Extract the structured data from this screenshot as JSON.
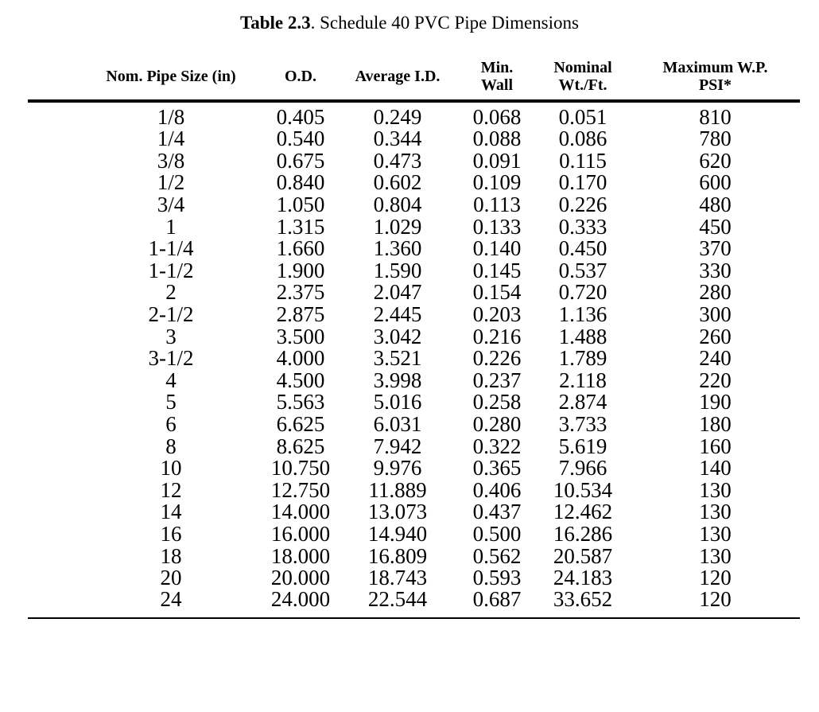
{
  "title": {
    "bold_part": "Table 2.3",
    "rest_part": ". Schedule 40 PVC Pipe Dimensions"
  },
  "table": {
    "headers": [
      {
        "line1": "Nom. Pipe Size (in)",
        "line2": ""
      },
      {
        "line1": "O.D.",
        "line2": ""
      },
      {
        "line1": "Average I.D.",
        "line2": ""
      },
      {
        "line1": "Min.",
        "line2": "Wall"
      },
      {
        "line1": "Nominal",
        "line2": "Wt./Ft."
      },
      {
        "line1": "Maximum W.P.",
        "line2": "PSI*"
      }
    ],
    "rows": [
      [
        "1/8",
        "0.405",
        "0.249",
        "0.068",
        "0.051",
        "810"
      ],
      [
        "1/4",
        "0.540",
        "0.344",
        "0.088",
        "0.086",
        "780"
      ],
      [
        "3/8",
        "0.675",
        "0.473",
        "0.091",
        "0.115",
        "620"
      ],
      [
        "1/2",
        "0.840",
        "0.602",
        "0.109",
        "0.170",
        "600"
      ],
      [
        "3/4",
        "1.050",
        "0.804",
        "0.113",
        "0.226",
        "480"
      ],
      [
        "1",
        "1.315",
        "1.029",
        "0.133",
        "0.333",
        "450"
      ],
      [
        "1-1/4",
        "1.660",
        "1.360",
        "0.140",
        "0.450",
        "370"
      ],
      [
        "1-1/2",
        "1.900",
        "1.590",
        "0.145",
        "0.537",
        "330"
      ],
      [
        "2",
        "2.375",
        "2.047",
        "0.154",
        "0.720",
        "280"
      ],
      [
        "2-1/2",
        "2.875",
        "2.445",
        "0.203",
        "1.136",
        "300"
      ],
      [
        "3",
        "3.500",
        "3.042",
        "0.216",
        "1.488",
        "260"
      ],
      [
        "3-1/2",
        "4.000",
        "3.521",
        "0.226",
        "1.789",
        "240"
      ],
      [
        "4",
        "4.500",
        "3.998",
        "0.237",
        "2.118",
        "220"
      ],
      [
        "5",
        "5.563",
        "5.016",
        "0.258",
        "2.874",
        "190"
      ],
      [
        "6",
        "6.625",
        "6.031",
        "0.280",
        "3.733",
        "180"
      ],
      [
        "8",
        "8.625",
        "7.942",
        "0.322",
        "5.619",
        "160"
      ],
      [
        "10",
        "10.750",
        "9.976",
        "0.365",
        "7.966",
        "140"
      ],
      [
        "12",
        "12.750",
        "11.889",
        "0.406",
        "10.534",
        "130"
      ],
      [
        "14",
        "14.000",
        "13.073",
        "0.437",
        "12.462",
        "130"
      ],
      [
        "16",
        "16.000",
        "14.940",
        "0.500",
        "16.286",
        "130"
      ],
      [
        "18",
        "18.000",
        "16.809",
        "0.562",
        "20.587",
        "130"
      ],
      [
        "20",
        "20.000",
        "18.743",
        "0.593",
        "24.183",
        "120"
      ],
      [
        "24",
        "24.000",
        "22.544",
        "0.687",
        "33.652",
        "120"
      ]
    ]
  },
  "colors": {
    "text": "#000000",
    "background": "#ffffff",
    "rule": "#000000"
  }
}
